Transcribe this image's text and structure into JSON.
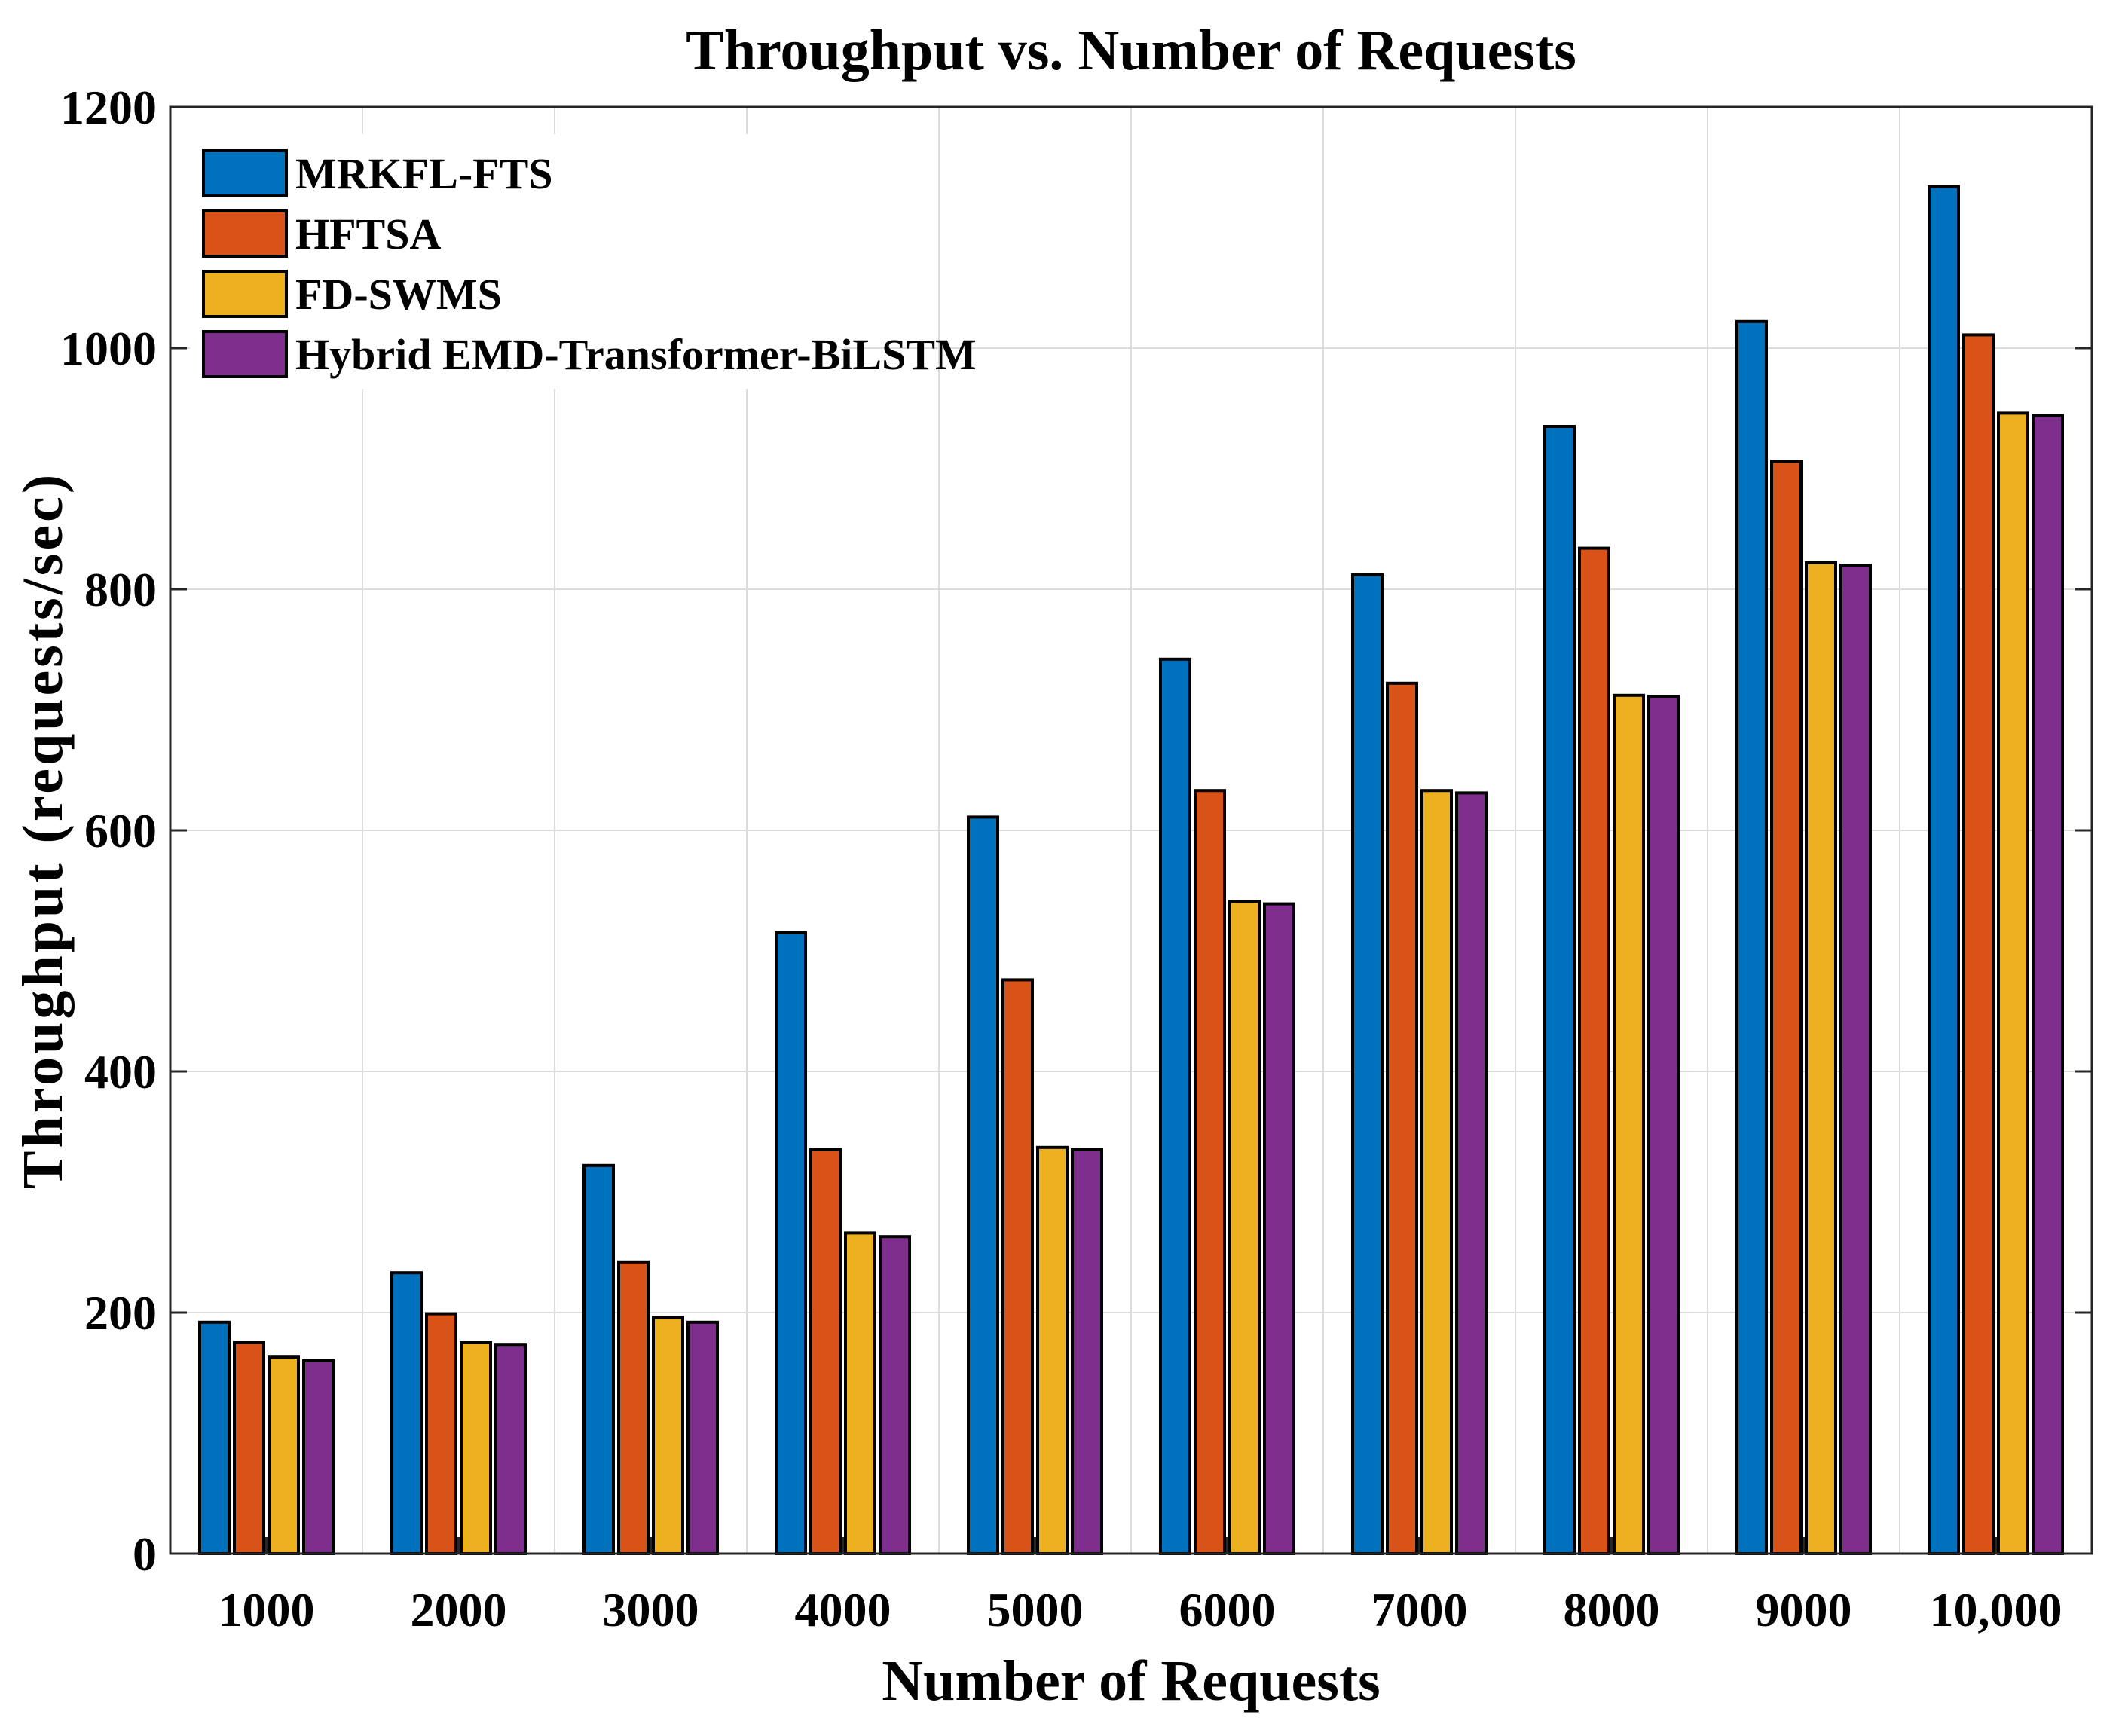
{
  "chart_data": {
    "type": "bar",
    "title": "Throughput vs. Number of Requests",
    "xlabel": "Number of Requests",
    "ylabel": "Throughput (requests/sec)",
    "ylim": [
      0,
      1200
    ],
    "yticks": [
      "0",
      "200",
      "400",
      "600",
      "800",
      "1000",
      "1200"
    ],
    "grid": true,
    "legend_position": "top-left",
    "categories": [
      "1000",
      "2000",
      "3000",
      "4000",
      "5000",
      "6000",
      "7000",
      "8000",
      "9000",
      "10,000"
    ],
    "series": [
      {
        "name": "MRKFL-FTS",
        "color": "#0072BD",
        "values": [
          192,
          233,
          322,
          515,
          611,
          742,
          812,
          935,
          1022,
          1134
        ]
      },
      {
        "name": "HFTSA",
        "color": "#D95319",
        "values": [
          175,
          199,
          242,
          335,
          476,
          633,
          722,
          834,
          906,
          1011
        ]
      },
      {
        "name": "FD-SWMS",
        "color": "#EDB120",
        "values": [
          163,
          175,
          196,
          266,
          337,
          541,
          633,
          712,
          822,
          946
        ]
      },
      {
        "name": "Hybrid EMD-Transformer-BiLSTM",
        "color": "#7E2F8E",
        "values": [
          160,
          173,
          192,
          263,
          335,
          539,
          631,
          711,
          820,
          944
        ]
      }
    ]
  }
}
